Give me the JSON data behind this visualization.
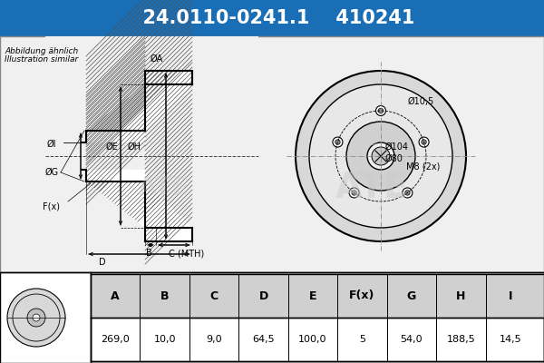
{
  "title_part_number": "24.0110-0241.1",
  "title_ref_number": "410241",
  "header_bg": "#1a6eb5",
  "header_text_color": "#ffffff",
  "bg_color": "#e8e8e8",
  "drawing_bg": "#e8e8e8",
  "table_header_bg": "#d0d0d0",
  "note_line1": "Abbildung ähnlich",
  "note_line2": "Illustration similar",
  "table_cols": [
    "A",
    "B",
    "C",
    "D",
    "E",
    "F(x)",
    "G",
    "H",
    "I"
  ],
  "table_vals": [
    "269,0",
    "10,0",
    "9,0",
    "64,5",
    "100,0",
    "5",
    "54,0",
    "188,5",
    "14,5"
  ],
  "dim_labels_side": [
    "ØI",
    "ØG",
    "ØE",
    "ØH",
    "ØA",
    "F(x)",
    "B",
    "C (MTH)",
    "D"
  ],
  "dim_labels_front": [
    "Ø10,5",
    "Ø104",
    "Ø80",
    "M8 (2x)"
  ]
}
